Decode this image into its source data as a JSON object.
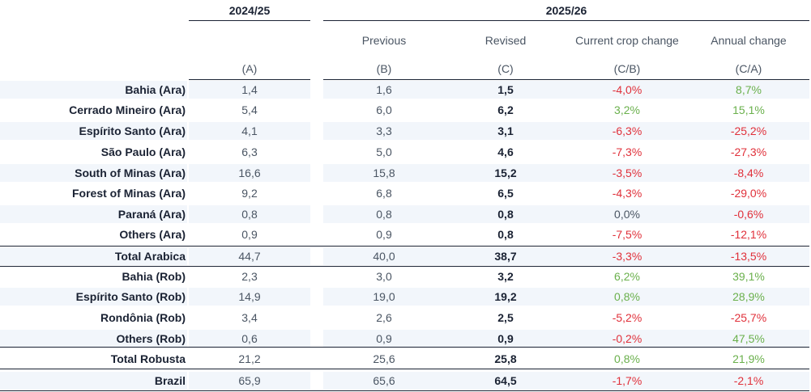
{
  "header": {
    "year_a": "2024/25",
    "year_b": "2025/26",
    "col_b_title": "Previous",
    "col_c_title": "Revised",
    "col_d_title": "Current crop change",
    "col_e_title": "Annual change",
    "col_a_code": "(A)",
    "col_b_code": "(B)",
    "col_c_code": "(C)",
    "col_d_code": "(C/B)",
    "col_e_code": "(C/A)"
  },
  "colors": {
    "negative": "#e0303a",
    "positive": "#6ab04c",
    "band": "#f2f6fb"
  },
  "rows": [
    {
      "label": "Bahia (Ara)",
      "a": "1,4",
      "b": "1,6",
      "c": "1,5",
      "d": "-4,0%",
      "e": "8,7%"
    },
    {
      "label": "Cerrado Mineiro (Ara)",
      "a": "5,4",
      "b": "6,0",
      "c": "6,2",
      "d": "3,2%",
      "e": "15,1%"
    },
    {
      "label": "Espírito Santo (Ara)",
      "a": "4,1",
      "b": "3,3",
      "c": "3,1",
      "d": "-6,3%",
      "e": "-25,2%"
    },
    {
      "label": "São Paulo (Ara)",
      "a": "6,3",
      "b": "5,0",
      "c": "4,6",
      "d": "-7,3%",
      "e": "-27,3%"
    },
    {
      "label": "South of Minas (Ara)",
      "a": "16,6",
      "b": "15,8",
      "c": "15,2",
      "d": "-3,5%",
      "e": "-8,4%"
    },
    {
      "label": "Forest of Minas (Ara)",
      "a": "9,2",
      "b": "6,8",
      "c": "6,5",
      "d": "-4,3%",
      "e": "-29,0%"
    },
    {
      "label": "Paraná (Ara)",
      "a": "0,8",
      "b": "0,8",
      "c": "0,8",
      "d": "0,0%",
      "e": "-0,6%"
    },
    {
      "label": "Others (Ara)",
      "a": "0,9",
      "b": "0,9",
      "c": "0,8",
      "d": "-7,5%",
      "e": "-12,1%"
    },
    {
      "label": "Total Arabica",
      "a": "44,7",
      "b": "40,0",
      "c": "38,7",
      "d": "-3,3%",
      "e": "-13,5%"
    },
    {
      "label": "Bahia (Rob)",
      "a": "2,3",
      "b": "3,0",
      "c": "3,2",
      "d": "6,2%",
      "e": "39,1%"
    },
    {
      "label": "Espírito Santo (Rob)",
      "a": "14,9",
      "b": "19,0",
      "c": "19,2",
      "d": "0,8%",
      "e": "28,9%"
    },
    {
      "label": "Rondônia (Rob)",
      "a": "3,4",
      "b": "2,6",
      "c": "2,5",
      "d": "-5,2%",
      "e": "-25,7%"
    },
    {
      "label": "Others (Rob)",
      "a": "0,6",
      "b": "0,9",
      "c": "0,9",
      "d": "-0,2%",
      "e": "47,5%"
    },
    {
      "label": "Total Robusta",
      "a": "21,2",
      "b": "25,6",
      "c": "25,8",
      "d": "0,8%",
      "e": "21,9%"
    },
    {
      "label": "Brazil",
      "a": "65,9",
      "b": "65,6",
      "c": "64,5",
      "d": "-1,7%",
      "e": "-2,1%"
    }
  ]
}
